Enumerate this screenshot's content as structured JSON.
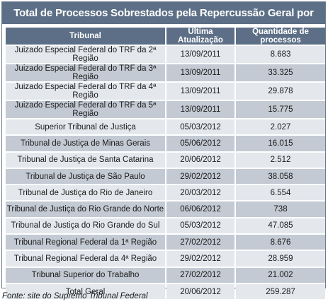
{
  "title": "Total de Processos Sobrestados pela Repercussão Geral por Tribunal",
  "columns": [
    "Tribunal",
    "Última Atualização",
    "Quantidade de processos"
  ],
  "rows": [
    {
      "tribunal": "Juizado Especial Federal do TRF da 2ª Região",
      "date": "13/09/2011",
      "qty": "8.683"
    },
    {
      "tribunal": "Juizado Especial Federal do TRF da 3ª Região",
      "date": "13/09/2011",
      "qty": "33.325"
    },
    {
      "tribunal": "Juizado Especial Federal do TRF da 4ª Região",
      "date": "13/09/2011",
      "qty": "29.878"
    },
    {
      "tribunal": "Juizado Especial Federal do TRF da 5ª Região",
      "date": "13/09/2011",
      "qty": "15.775"
    },
    {
      "tribunal": "Superior Tribunal de Justiça",
      "date": "05/03/2012",
      "qty": "2.027"
    },
    {
      "tribunal": "Tribunal de Justiça de Minas Gerais",
      "date": "05/06/2012",
      "qty": "16.015"
    },
    {
      "tribunal": "Tribunal de Justiça de Santa Catarina",
      "date": "20/06/2012",
      "qty": "2.512"
    },
    {
      "tribunal": "Tribunal de Justiça de São Paulo",
      "date": "29/02/2012",
      "qty": "38.058"
    },
    {
      "tribunal": "Tribunal de Justiça do Rio de Janeiro",
      "date": "20/03/2012",
      "qty": "6.554"
    },
    {
      "tribunal": "Tribunal de Justiça do Rio Grande do Norte",
      "date": "06/06/2012",
      "qty": "738"
    },
    {
      "tribunal": "Tribunal de Justiça do Rio Grande do Sul",
      "date": "05/03/2012",
      "qty": "47.085"
    },
    {
      "tribunal": "Tribunal Regional Federal da 1ª Região",
      "date": "27/02/2012",
      "qty": "8.676"
    },
    {
      "tribunal": "Tribunal Regional Federal da 4ª Região",
      "date": "29/02/2012",
      "qty": "28.959"
    },
    {
      "tribunal": "Tribunal Superior do Trabalho",
      "date": "27/02/2012",
      "qty": "21.002"
    },
    {
      "tribunal": "Total Geral",
      "date": "20/06/2012",
      "qty": "259.287"
    }
  ],
  "source": "Fonte: site do Supremo Tribunal Federal",
  "colors": {
    "header": "#5c6f86",
    "row_light": "#e4e8ed",
    "row_dark": "#c3cad3"
  }
}
